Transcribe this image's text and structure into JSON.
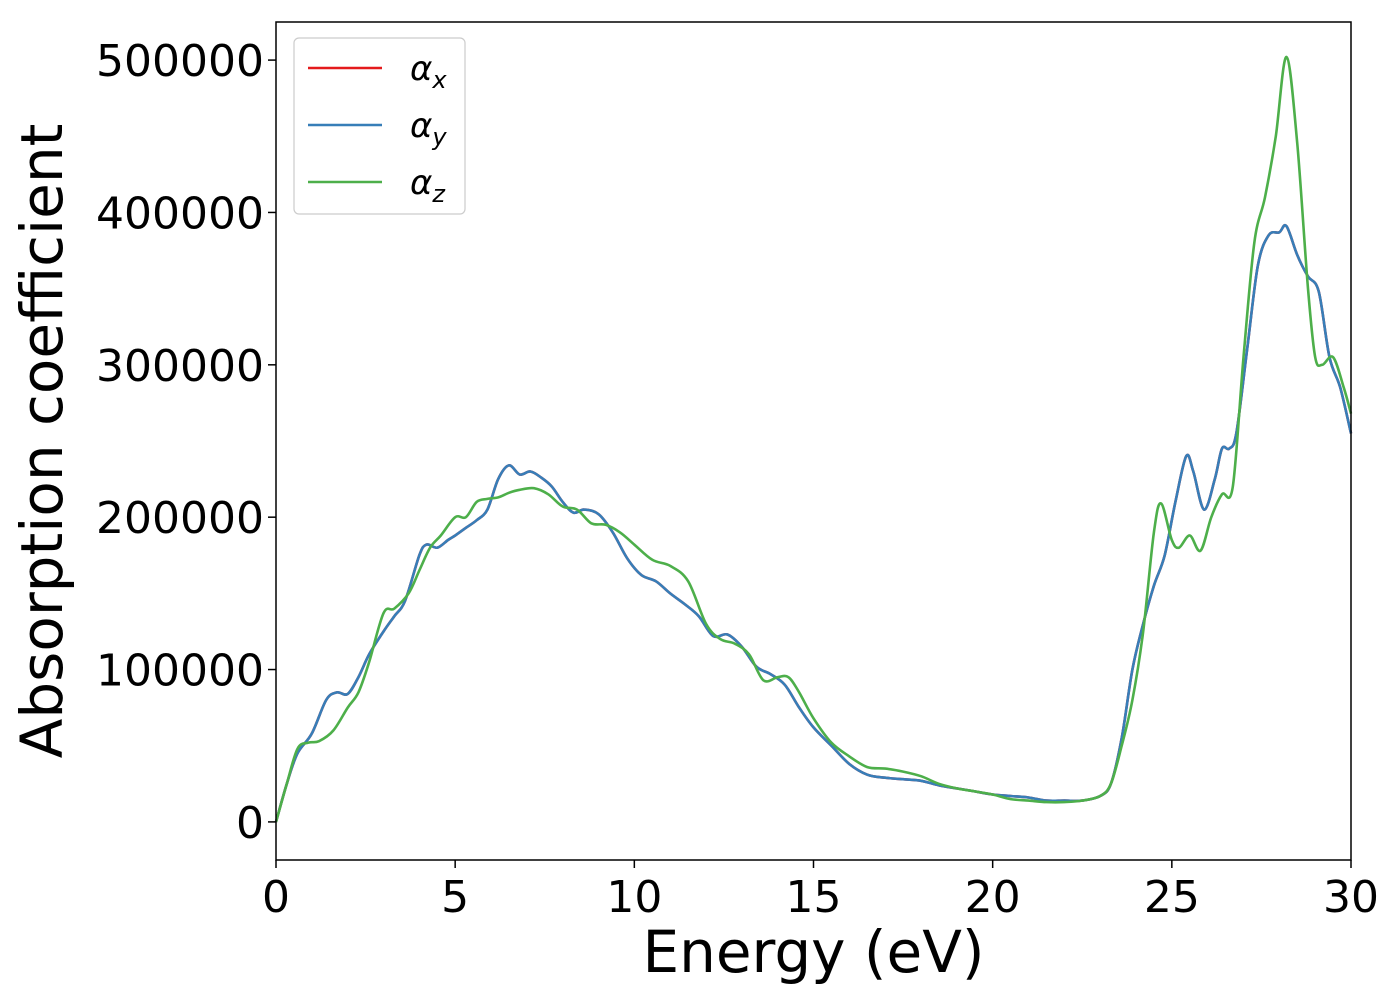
{
  "chart_data": {
    "type": "line",
    "xlabel": "Energy (eV)",
    "ylabel": "Absorption coefficient",
    "xlim": [
      0,
      30
    ],
    "ylim": [
      -25000,
      525000
    ],
    "x_ticks": [
      0,
      5,
      10,
      15,
      20,
      25,
      30
    ],
    "y_ticks": [
      0,
      100000,
      200000,
      300000,
      400000,
      500000
    ],
    "grid": false,
    "legend_position": "top-left",
    "series": [
      {
        "name": "α",
        "sub": "x",
        "color": "#e41a1c",
        "x": [
          0,
          0.3,
          0.6,
          1.0,
          1.4,
          1.7,
          2.0,
          2.3,
          2.6,
          3.0,
          3.3,
          3.6,
          4.0,
          4.2,
          4.5,
          4.8,
          5.0,
          5.3,
          5.6,
          5.9,
          6.2,
          6.5,
          6.8,
          7.1,
          7.4,
          7.7,
          8.0,
          8.3,
          8.6,
          9.0,
          9.4,
          9.8,
          10.2,
          10.6,
          11.0,
          11.4,
          11.8,
          12.2,
          12.6,
          13.0,
          13.4,
          13.8,
          14.2,
          14.6,
          15.0,
          15.5,
          16.0,
          16.5,
          17.0,
          17.5,
          18.0,
          18.5,
          19.0,
          19.5,
          20.0,
          20.5,
          21.0,
          21.5,
          22.0,
          22.5,
          23.0,
          23.3,
          23.6,
          23.9,
          24.2,
          24.5,
          24.8,
          25.1,
          25.4,
          25.6,
          25.9,
          26.2,
          26.4,
          26.6,
          26.8,
          27.1,
          27.4,
          27.7,
          28.0,
          28.2,
          28.5,
          28.8,
          29.1,
          29.4,
          29.7,
          30.0
        ],
        "values": [
          0,
          25000,
          45000,
          58000,
          80000,
          85000,
          84000,
          95000,
          110000,
          125000,
          135000,
          145000,
          175000,
          182000,
          180000,
          185000,
          188000,
          193000,
          198000,
          205000,
          225000,
          234000,
          228000,
          230000,
          226000,
          220000,
          210000,
          203000,
          205000,
          202000,
          190000,
          173000,
          162000,
          158000,
          150000,
          143000,
          135000,
          122000,
          123000,
          115000,
          102000,
          97000,
          90000,
          75000,
          62000,
          50000,
          38000,
          31000,
          29000,
          28000,
          27000,
          24000,
          22000,
          20000,
          18000,
          17000,
          16000,
          14000,
          14000,
          14000,
          17000,
          25000,
          55000,
          100000,
          130000,
          155000,
          175000,
          210000,
          240000,
          230000,
          205000,
          225000,
          245000,
          245000,
          255000,
          310000,
          365000,
          385000,
          387000,
          391000,
          372000,
          358000,
          348000,
          305000,
          285000,
          255000
        ]
      },
      {
        "name": "α",
        "sub": "y",
        "color": "#377eb8",
        "x": [
          0,
          0.3,
          0.6,
          1.0,
          1.4,
          1.7,
          2.0,
          2.3,
          2.6,
          3.0,
          3.3,
          3.6,
          4.0,
          4.2,
          4.5,
          4.8,
          5.0,
          5.3,
          5.6,
          5.9,
          6.2,
          6.5,
          6.8,
          7.1,
          7.4,
          7.7,
          8.0,
          8.3,
          8.6,
          9.0,
          9.4,
          9.8,
          10.2,
          10.6,
          11.0,
          11.4,
          11.8,
          12.2,
          12.6,
          13.0,
          13.4,
          13.8,
          14.2,
          14.6,
          15.0,
          15.5,
          16.0,
          16.5,
          17.0,
          17.5,
          18.0,
          18.5,
          19.0,
          19.5,
          20.0,
          20.5,
          21.0,
          21.5,
          22.0,
          22.5,
          23.0,
          23.3,
          23.6,
          23.9,
          24.2,
          24.5,
          24.8,
          25.1,
          25.4,
          25.6,
          25.9,
          26.2,
          26.4,
          26.6,
          26.8,
          27.1,
          27.4,
          27.7,
          28.0,
          28.2,
          28.5,
          28.8,
          29.1,
          29.4,
          29.7,
          30.0
        ],
        "values": [
          0,
          25000,
          45000,
          58000,
          80000,
          85000,
          84000,
          95000,
          110000,
          125000,
          135000,
          145000,
          175000,
          182000,
          180000,
          185000,
          188000,
          193000,
          198000,
          205000,
          225000,
          234000,
          228000,
          230000,
          226000,
          220000,
          210000,
          203000,
          205000,
          202000,
          190000,
          173000,
          162000,
          158000,
          150000,
          143000,
          135000,
          122000,
          123000,
          115000,
          102000,
          97000,
          90000,
          75000,
          62000,
          50000,
          38000,
          31000,
          29000,
          28000,
          27000,
          24000,
          22000,
          20000,
          18000,
          17000,
          16000,
          14000,
          14000,
          14000,
          17000,
          25000,
          55000,
          100000,
          130000,
          155000,
          175000,
          210000,
          240000,
          230000,
          205000,
          225000,
          245000,
          245000,
          255000,
          310000,
          365000,
          385000,
          387000,
          391000,
          372000,
          358000,
          348000,
          305000,
          285000,
          255000
        ]
      },
      {
        "name": "α",
        "sub": "z",
        "color": "#4daf4a",
        "x": [
          0,
          0.3,
          0.6,
          0.9,
          1.2,
          1.6,
          2.0,
          2.3,
          2.6,
          3.0,
          3.3,
          3.7,
          4.0,
          4.3,
          4.6,
          5.0,
          5.3,
          5.6,
          5.9,
          6.2,
          6.5,
          6.8,
          7.2,
          7.6,
          8.0,
          8.4,
          8.8,
          9.2,
          9.6,
          10.0,
          10.5,
          11.0,
          11.5,
          12.0,
          12.4,
          12.8,
          13.2,
          13.6,
          14.0,
          14.3,
          14.6,
          15.0,
          15.5,
          16.0,
          16.5,
          17.0,
          17.5,
          18.0,
          18.5,
          19.0,
          19.5,
          20.0,
          20.5,
          21.0,
          21.5,
          22.0,
          22.5,
          23.0,
          23.3,
          23.6,
          23.9,
          24.2,
          24.5,
          24.7,
          25.0,
          25.2,
          25.5,
          25.8,
          26.1,
          26.4,
          26.7,
          27.0,
          27.3,
          27.6,
          27.9,
          28.2,
          28.5,
          28.8,
          29.0,
          29.2,
          29.5,
          29.8,
          30.0
        ],
        "values": [
          0,
          25000,
          48000,
          52000,
          53000,
          60000,
          75000,
          85000,
          105000,
          137000,
          140000,
          150000,
          165000,
          180000,
          188000,
          200000,
          200000,
          210000,
          212000,
          213000,
          216000,
          218000,
          219000,
          215000,
          207000,
          205000,
          196000,
          195000,
          190000,
          182000,
          172000,
          168000,
          158000,
          130000,
          120000,
          117000,
          110000,
          93000,
          95000,
          95000,
          85000,
          68000,
          52000,
          43000,
          36000,
          35000,
          33000,
          30000,
          25000,
          22000,
          20000,
          18000,
          15000,
          14000,
          13000,
          13000,
          14000,
          17000,
          25000,
          50000,
          80000,
          125000,
          190000,
          209000,
          185000,
          180000,
          188000,
          178000,
          200000,
          215000,
          220000,
          305000,
          380000,
          410000,
          450000,
          502000,
          445000,
          350000,
          305000,
          300000,
          305000,
          285000,
          268000
        ]
      }
    ]
  }
}
